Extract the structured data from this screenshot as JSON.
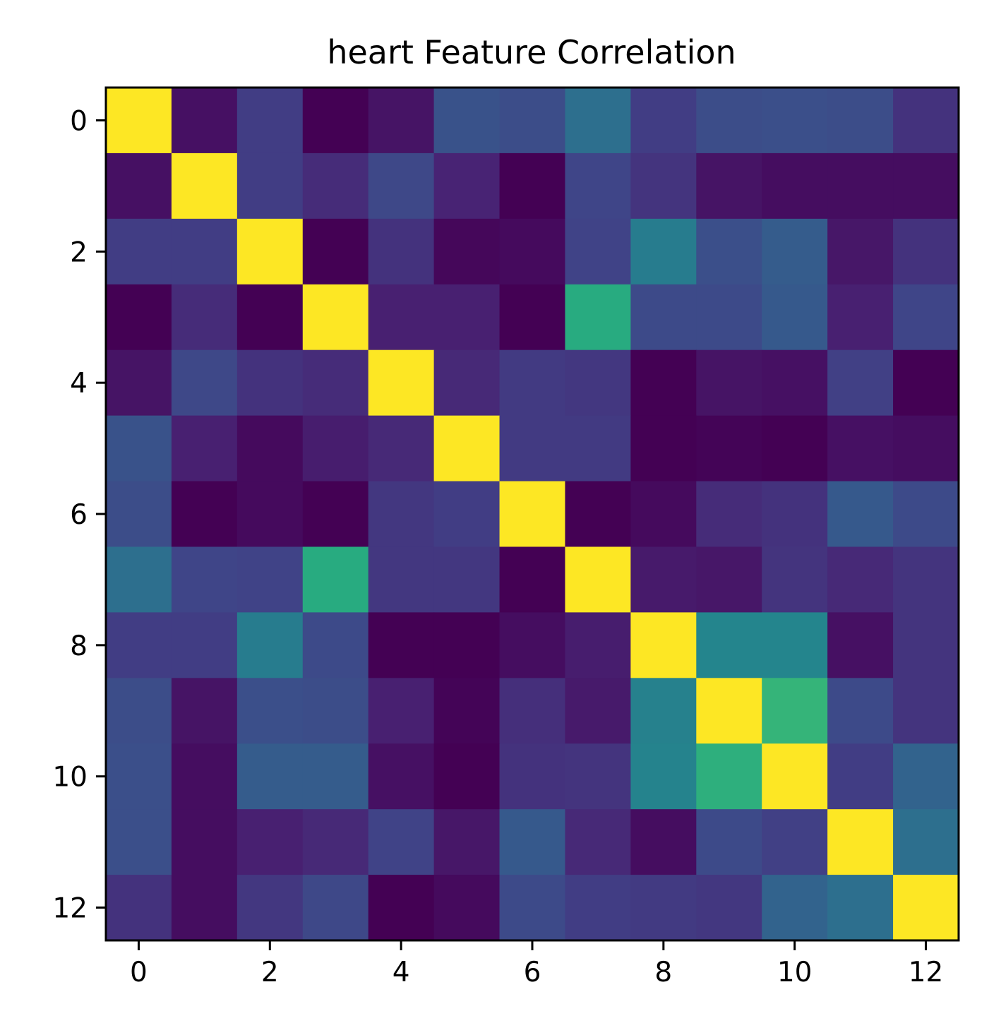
{
  "chart_data": {
    "type": "heatmap",
    "title": "heart Feature Correlation",
    "xlabel": "",
    "ylabel": "",
    "colormap": "viridis",
    "value_range": [
      -0.1,
      1.0
    ],
    "x_ticks": [
      0,
      2,
      4,
      6,
      8,
      10,
      12
    ],
    "y_ticks": [
      0,
      2,
      4,
      6,
      8,
      10,
      12
    ],
    "x_tick_labels": [
      "0",
      "2",
      "4",
      "6",
      "8",
      "10",
      "12"
    ],
    "y_tick_labels": [
      "0",
      "2",
      "4",
      "6",
      "8",
      "10",
      "12"
    ],
    "grid": false,
    "matrix": [
      [
        1.0,
        -0.05,
        0.1,
        -0.1,
        -0.04,
        0.18,
        0.16,
        0.3,
        0.1,
        0.16,
        0.17,
        0.16,
        0.06
      ],
      [
        -0.05,
        1.0,
        0.1,
        0.04,
        0.14,
        0.01,
        -0.1,
        0.13,
        0.07,
        -0.04,
        -0.06,
        -0.06,
        -0.06
      ],
      [
        0.1,
        0.1,
        1.0,
        -0.1,
        0.06,
        -0.08,
        -0.07,
        0.12,
        0.36,
        0.17,
        0.22,
        -0.03,
        0.06
      ],
      [
        -0.1,
        0.04,
        -0.1,
        1.0,
        0.0,
        0.0,
        -0.1,
        0.58,
        0.15,
        0.15,
        0.21,
        0.0,
        0.13
      ],
      [
        -0.04,
        0.14,
        0.06,
        0.04,
        1.0,
        0.03,
        0.09,
        0.08,
        -0.1,
        -0.04,
        -0.05,
        0.11,
        -0.11
      ],
      [
        0.18,
        0.0,
        -0.07,
        -0.01,
        0.03,
        1.0,
        0.09,
        0.09,
        -0.11,
        -0.09,
        -0.1,
        -0.05,
        -0.06
      ],
      [
        0.16,
        -0.1,
        -0.07,
        -0.1,
        0.08,
        0.1,
        1.0,
        -0.1,
        -0.07,
        0.04,
        0.06,
        0.21,
        0.15
      ],
      [
        0.3,
        0.13,
        0.12,
        0.58,
        0.08,
        0.08,
        -0.1,
        1.0,
        -0.02,
        -0.03,
        0.07,
        0.03,
        0.07
      ],
      [
        0.1,
        0.1,
        0.36,
        0.15,
        -0.1,
        -0.11,
        -0.06,
        -0.01,
        1.0,
        0.4,
        0.4,
        -0.05,
        0.07
      ],
      [
        0.16,
        -0.04,
        0.17,
        0.16,
        0.0,
        -0.09,
        0.05,
        -0.02,
        0.38,
        1.0,
        0.62,
        0.15,
        0.07
      ],
      [
        0.17,
        -0.06,
        0.22,
        0.22,
        -0.05,
        -0.11,
        0.06,
        0.07,
        0.39,
        0.6,
        1.0,
        0.1,
        0.25
      ],
      [
        0.17,
        -0.06,
        0.0,
        0.03,
        0.12,
        -0.03,
        0.21,
        0.03,
        -0.06,
        0.15,
        0.11,
        1.0,
        0.3
      ],
      [
        0.06,
        -0.06,
        0.08,
        0.14,
        -0.11,
        -0.07,
        0.15,
        0.1,
        0.09,
        0.08,
        0.25,
        0.3,
        1.0
      ]
    ]
  }
}
